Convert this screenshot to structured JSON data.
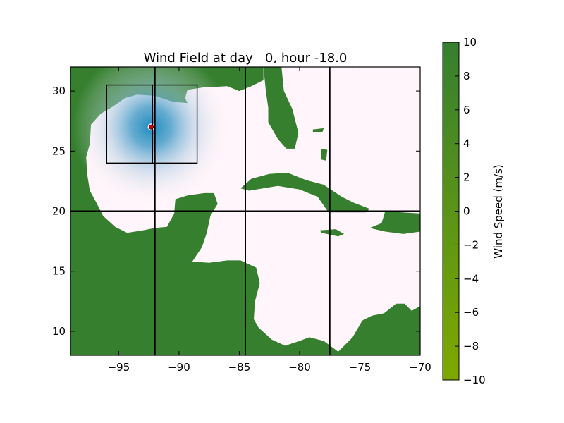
{
  "chart_data": {
    "type": "heatmap",
    "title": "Wind Field at day   0, hour -18.0",
    "xlim": [
      -99,
      -70
    ],
    "ylim": [
      8,
      32
    ],
    "x_ticks": [
      -95,
      -90,
      -85,
      -80,
      -75,
      -70
    ],
    "y_ticks": [
      10,
      15,
      20,
      25,
      30
    ],
    "x_tick_labels": [
      "−95",
      "−90",
      "−85",
      "−80",
      "−75",
      "−70"
    ],
    "y_tick_labels": [
      "10",
      "15",
      "20",
      "25",
      "30"
    ],
    "grid_lines": {
      "x": [
        -92,
        -84.5,
        -77.5
      ],
      "y": [
        20
      ]
    },
    "storm_center": {
      "lon": -92.3,
      "lat": 27.0
    },
    "inner_boxes": [
      {
        "lon": [
          -96.0,
          -92.2
        ],
        "lat": [
          24.0,
          30.5
        ]
      },
      {
        "lon": [
          -92.2,
          -88.5
        ],
        "lat": [
          24.0,
          30.5
        ]
      }
    ],
    "colorbar": {
      "label": "Wind Speed (m/s)",
      "range": [
        -10,
        10
      ],
      "ticks": [
        10,
        8,
        6,
        4,
        2,
        0,
        -2,
        -4,
        -6,
        -8,
        -10
      ],
      "tick_labels": [
        "10",
        "8",
        "6",
        "4",
        "2",
        "0",
        "−2",
        "−4",
        "−6",
        "−8",
        "−10"
      ],
      "color_low": "#7fa800",
      "color_high": "#357f2f"
    },
    "colors": {
      "land": "#357f2f",
      "water": "#fff5fa",
      "wind_peak": "#1f8cc0",
      "storm_center_marker": "#cc0000"
    },
    "land_polygons": [
      {
        "name": "US Gulf Coast",
        "points": [
          [
            -99,
            32
          ],
          [
            -83,
            32
          ],
          [
            -83,
            30.9
          ],
          [
            -84,
            30.4
          ],
          [
            -85,
            30
          ],
          [
            -86,
            30.4
          ],
          [
            -88,
            30.3
          ],
          [
            -89.3,
            30.1
          ],
          [
            -89.5,
            29.4
          ],
          [
            -89.3,
            29
          ],
          [
            -90.5,
            29.1
          ],
          [
            -92,
            29.6
          ],
          [
            -93.5,
            29.7
          ],
          [
            -94.5,
            29.4
          ],
          [
            -95.5,
            28.7
          ],
          [
            -96.5,
            28.1
          ],
          [
            -97.3,
            27.2
          ],
          [
            -97.4,
            25.6
          ],
          [
            -97.7,
            24.5
          ],
          [
            -97.6,
            23
          ],
          [
            -97.4,
            21.7
          ],
          [
            -96.9,
            20.8
          ],
          [
            -96.3,
            19.6
          ],
          [
            -95.3,
            18.7
          ],
          [
            -94.3,
            18.2
          ],
          [
            -93,
            18.4
          ],
          [
            -92,
            18.6
          ],
          [
            -91,
            18.7
          ],
          [
            -90.4,
            19.8
          ],
          [
            -90.3,
            21
          ],
          [
            -89.3,
            21.3
          ],
          [
            -87.9,
            21.5
          ],
          [
            -87.1,
            21.5
          ],
          [
            -86.8,
            20.6
          ],
          [
            -87.4,
            19.6
          ],
          [
            -87.7,
            18.2
          ],
          [
            -88.1,
            17
          ],
          [
            -88.9,
            15.8
          ],
          [
            -87.5,
            15.7
          ],
          [
            -86,
            15.9
          ],
          [
            -84.9,
            15.9
          ],
          [
            -83.6,
            15.3
          ],
          [
            -83.3,
            14
          ],
          [
            -83.7,
            12.5
          ],
          [
            -83.8,
            11
          ],
          [
            -83.4,
            10.3
          ],
          [
            -82.3,
            9.3
          ],
          [
            -81.2,
            8.8
          ],
          [
            -80,
            9.2
          ],
          [
            -79.2,
            9.5
          ],
          [
            -78,
            9.2
          ],
          [
            -77.2,
            8.6
          ],
          [
            -76.8,
            8.3
          ],
          [
            -75.6,
            9.5
          ],
          [
            -74.8,
            10.9
          ],
          [
            -74,
            11.3
          ],
          [
            -73,
            11.5
          ],
          [
            -72,
            12.3
          ],
          [
            -71.3,
            12.3
          ],
          [
            -70.7,
            11.7
          ],
          [
            -70,
            12.1
          ],
          [
            -70,
            8
          ],
          [
            -99,
            8
          ]
        ]
      },
      {
        "name": "Florida",
        "points": [
          [
            -83,
            32
          ],
          [
            -82.8,
            30
          ],
          [
            -82.6,
            28.6
          ],
          [
            -82.6,
            27.4
          ],
          [
            -81.8,
            26
          ],
          [
            -81.1,
            25.2
          ],
          [
            -80.4,
            25.2
          ],
          [
            -80.1,
            26.5
          ],
          [
            -80.6,
            28.5
          ],
          [
            -81.3,
            30
          ],
          [
            -81.5,
            32
          ]
        ]
      },
      {
        "name": "Cuba",
        "points": [
          [
            -84.9,
            21.9
          ],
          [
            -84,
            22.7
          ],
          [
            -82.5,
            23.1
          ],
          [
            -81,
            23.2
          ],
          [
            -79.5,
            22.6
          ],
          [
            -78,
            22.2
          ],
          [
            -76.5,
            21.2
          ],
          [
            -75.5,
            20.7
          ],
          [
            -74.2,
            20.2
          ],
          [
            -74.5,
            19.9
          ],
          [
            -76,
            19.9
          ],
          [
            -77.6,
            19.9
          ],
          [
            -78.5,
            21.2
          ],
          [
            -80,
            21.8
          ],
          [
            -81.8,
            22.1
          ],
          [
            -84.2,
            21.7
          ]
        ]
      },
      {
        "name": "Hispaniola",
        "points": [
          [
            -72.9,
            20
          ],
          [
            -71.5,
            19.9
          ],
          [
            -70,
            19.8
          ],
          [
            -70,
            18.3
          ],
          [
            -71.4,
            18.1
          ],
          [
            -72.9,
            18.3
          ],
          [
            -74.2,
            18.6
          ],
          [
            -73.2,
            19
          ]
        ]
      },
      {
        "name": "Jamaica",
        "points": [
          [
            -78.3,
            18.4
          ],
          [
            -77,
            18.5
          ],
          [
            -76.3,
            18.1
          ],
          [
            -76.8,
            17.9
          ],
          [
            -78.2,
            18.2
          ]
        ]
      },
      {
        "name": "Andros",
        "points": [
          [
            -78.2,
            25.2
          ],
          [
            -77.7,
            25.1
          ],
          [
            -77.8,
            24.2
          ],
          [
            -78.2,
            24.3
          ]
        ]
      },
      {
        "name": "Grand Bahama",
        "points": [
          [
            -78.9,
            26.8
          ],
          [
            -78,
            26.9
          ],
          [
            -78.1,
            26.6
          ],
          [
            -78.9,
            26.6
          ]
        ]
      }
    ]
  }
}
